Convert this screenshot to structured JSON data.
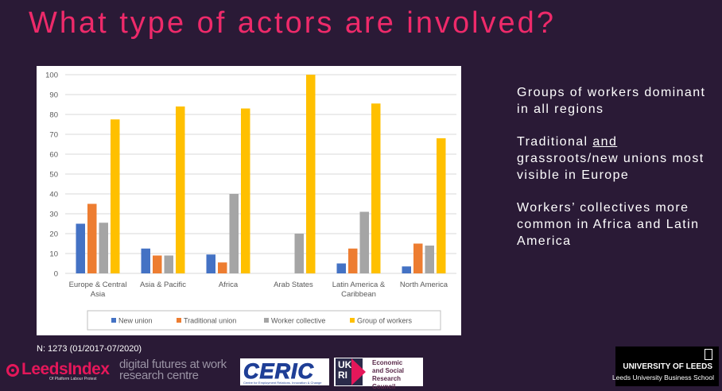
{
  "slide": {
    "title": "What type of actors are involved?",
    "bullets": [
      {
        "before": "Groups of workers dominant in all regions",
        "underlined": "",
        "after": ""
      },
      {
        "before": "Traditional ",
        "underlined": "and",
        "after": " grassroots/new unions most visible in Europe"
      },
      {
        "before": "Workers’ collectives more common in Africa and Latin America",
        "underlined": "",
        "after": ""
      }
    ],
    "sample_note": "N: 1273 (01/2017-07/2020)"
  },
  "logos": {
    "leeds_index": {
      "word": "LeedsIndex",
      "sub": "Of Platform Labour Protest"
    },
    "digital_futures": {
      "line1": "digital futures at work",
      "line2": "research centre"
    },
    "ceric": {
      "word": "CERIC",
      "sub": "Centre for Employment Relations, Innovation & Change"
    },
    "ukri": {
      "mark": "UK RI",
      "name_lines": [
        "Economic",
        "and Social",
        "Research Council"
      ]
    },
    "uol": {
      "name": "UNIVERSITY OF LEEDS",
      "school": "Leeds University Business School"
    }
  },
  "colors": {
    "new_union": "#4472c4",
    "traditional_union": "#ed7d31",
    "worker_collective": "#a5a5a5",
    "group_of_workers": "#ffc000",
    "title": "#ee2a6a",
    "background": "#2a1a36"
  },
  "chart_data": {
    "type": "bar",
    "title": "",
    "xlabel": "",
    "ylabel": "",
    "ylim": [
      0,
      100
    ],
    "yticks": [
      "0",
      "10",
      "20",
      "30",
      "40",
      "50",
      "60",
      "70",
      "80",
      "90",
      "100"
    ],
    "grid": true,
    "legend_position": "bottom",
    "categories": [
      [
        "Europe & Central",
        "Asia"
      ],
      [
        "Asia & Pacific"
      ],
      [
        "Africa"
      ],
      [
        "Arab States"
      ],
      [
        "Latin America &",
        "Caribbean"
      ],
      [
        "North America"
      ]
    ],
    "series": [
      {
        "name": "New union",
        "color": "#4472c4",
        "values": [
          25,
          12.5,
          9.5,
          0,
          5,
          3.5
        ]
      },
      {
        "name": "Traditional union",
        "color": "#ed7d31",
        "values": [
          35,
          9,
          5.5,
          0,
          12.5,
          15
        ]
      },
      {
        "name": "Worker collective",
        "color": "#a5a5a5",
        "values": [
          25.5,
          9,
          40,
          20,
          31,
          14
        ]
      },
      {
        "name": "Group of workers",
        "color": "#ffc000",
        "values": [
          77.5,
          84,
          83,
          100,
          85.5,
          68
        ]
      }
    ]
  }
}
